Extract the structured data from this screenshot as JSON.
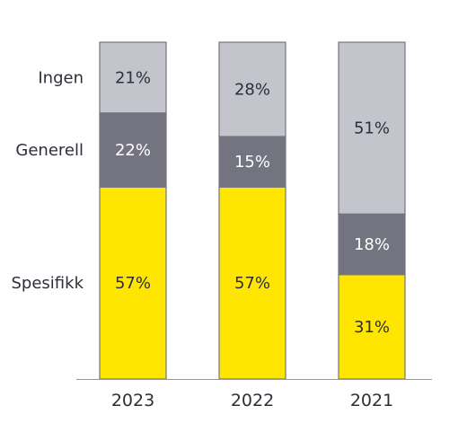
{
  "chart_data": {
    "type": "bar",
    "stacked": true,
    "categories": [
      "2023",
      "2022",
      "2021"
    ],
    "series": [
      {
        "name": "Spesifikk",
        "values": [
          57,
          57,
          31
        ],
        "value_labels": [
          "57%",
          "57%",
          "31%"
        ],
        "color": "#FFE600",
        "label_color": "#2e2e38"
      },
      {
        "name": "Generell",
        "values": [
          22,
          15,
          18
        ],
        "value_labels": [
          "22%",
          "15%",
          "18%"
        ],
        "color": "#747480",
        "label_color": "#ffffff"
      },
      {
        "name": "Ingen",
        "values": [
          21,
          28,
          51
        ],
        "value_labels": [
          "21%",
          "28%",
          "51%"
        ],
        "color": "#C4C4CD",
        "label_color": "#2e2e38"
      }
    ],
    "ylim": [
      0,
      100
    ],
    "legend_placement": "left, aligned with first bar segments",
    "grid": false,
    "border_color": "#747480",
    "baseline_color": "#999999"
  }
}
